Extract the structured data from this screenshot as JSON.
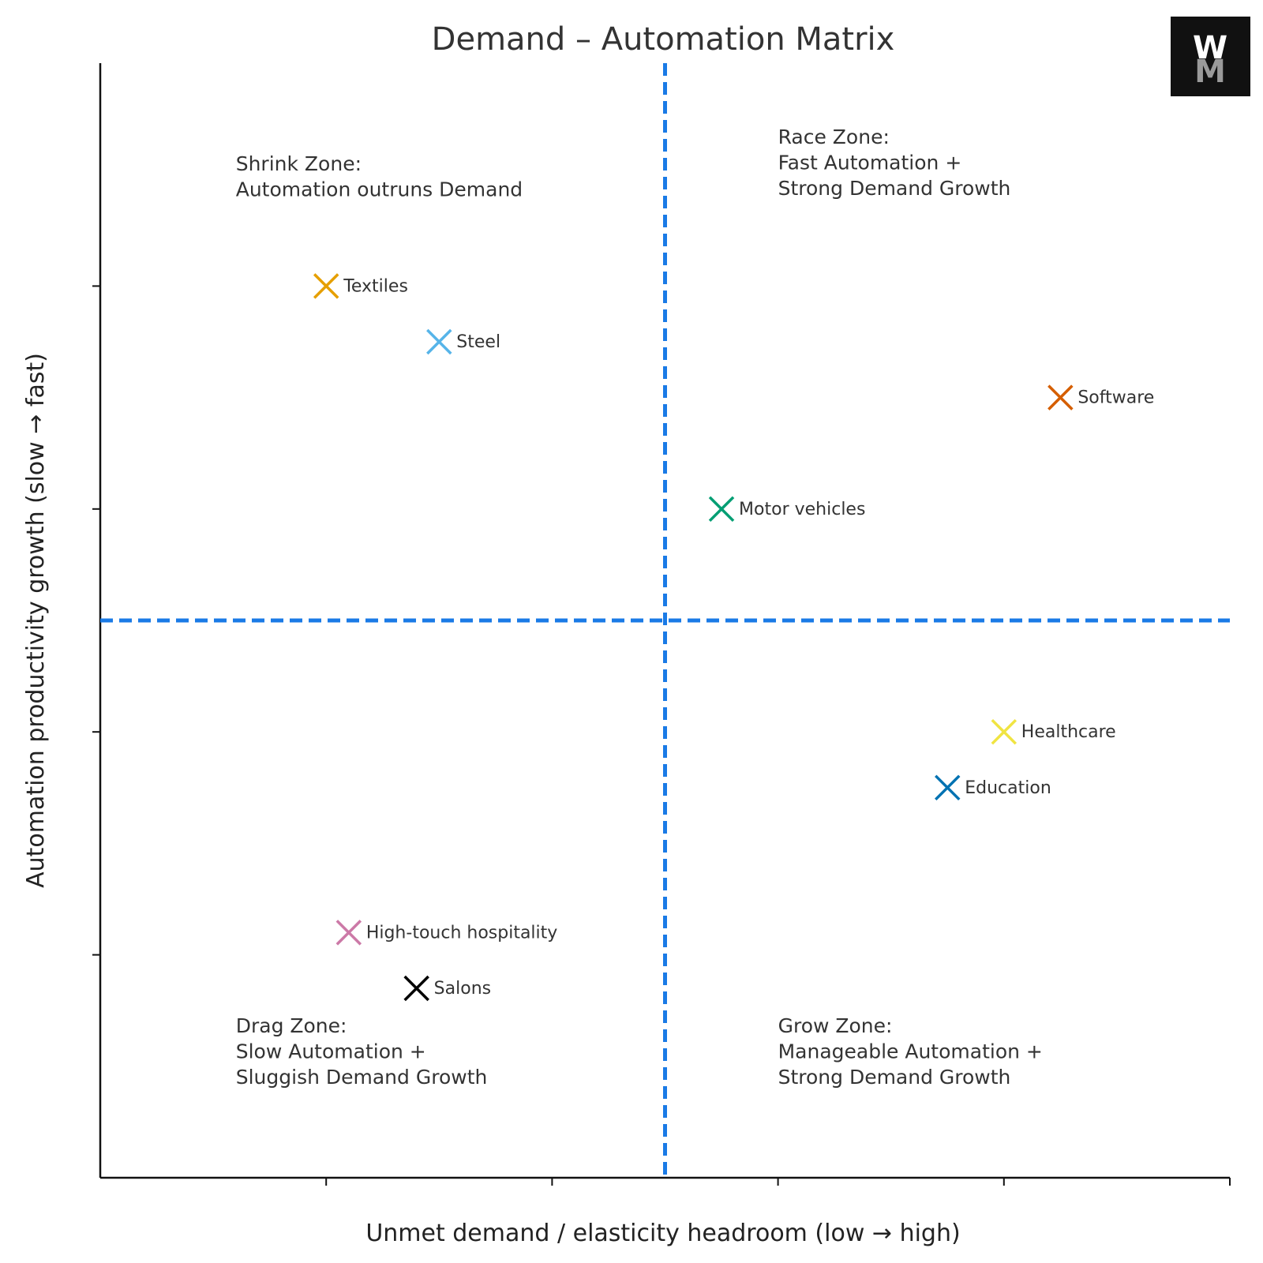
{
  "chart_data": {
    "type": "scatter",
    "title": "Demand – Automation Matrix",
    "xlabel": "Unmet demand / elasticity headroom (low → high)",
    "ylabel": "Automation productivity growth (slow → fast)",
    "xlim": [
      0,
      10
    ],
    "ylim": [
      0,
      10
    ],
    "xticks": [
      2,
      4,
      6,
      8,
      10
    ],
    "yticks": [
      2,
      4,
      6,
      8
    ],
    "tick_labels_shown": false,
    "grid": false,
    "divider_x": 5,
    "divider_y": 5,
    "divider_color": "#1a7ae6",
    "marker": "x",
    "points": [
      {
        "label": "Textiles",
        "x": 2.0,
        "y": 8.0,
        "color": "#E69F00"
      },
      {
        "label": "Steel",
        "x": 3.0,
        "y": 7.5,
        "color": "#56B4E9"
      },
      {
        "label": "Software",
        "x": 8.5,
        "y": 7.0,
        "color": "#D55E00"
      },
      {
        "label": "Motor vehicles",
        "x": 5.5,
        "y": 6.0,
        "color": "#009E73"
      },
      {
        "label": "Healthcare",
        "x": 8.0,
        "y": 4.0,
        "color": "#F0E442"
      },
      {
        "label": "Education",
        "x": 7.5,
        "y": 3.5,
        "color": "#0072B2"
      },
      {
        "label": "High-touch hospitality",
        "x": 2.2,
        "y": 2.2,
        "color": "#CC79A7"
      },
      {
        "label": "Salons",
        "x": 2.8,
        "y": 1.7,
        "color": "#000000"
      }
    ],
    "annotations": [
      {
        "id": "shrink",
        "lines": [
          "Shrink Zone:",
          "Automation outruns Demand"
        ],
        "x": 1.2,
        "y": 9.0
      },
      {
        "id": "race",
        "lines": [
          "Race Zone:",
          "Fast Automation +",
          "Strong Demand Growth"
        ],
        "x": 6.0,
        "y": 9.0
      },
      {
        "id": "drag",
        "lines": [
          "Drag Zone:",
          "Slow Automation +",
          "Sluggish Demand Growth"
        ],
        "x": 1.2,
        "y": 1.0
      },
      {
        "id": "grow",
        "lines": [
          "Grow Zone:",
          "Manageable Automation +",
          "Strong Demand Growth"
        ],
        "x": 6.0,
        "y": 1.0
      }
    ]
  },
  "logo": {
    "letters": "WM",
    "background": "#111111",
    "color_top": "#ffffff",
    "color_bottom": "#9a9a9a"
  }
}
